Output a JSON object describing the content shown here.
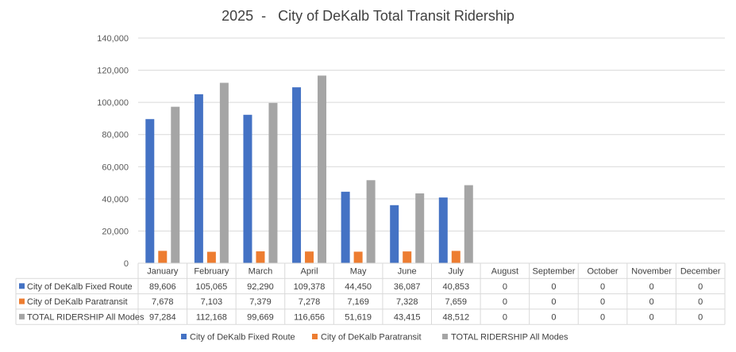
{
  "chart_data": {
    "type": "bar",
    "title": "2025  -   City of DeKalb Total Transit Ridership",
    "categories": [
      "January",
      "February",
      "March",
      "April",
      "May",
      "June",
      "July",
      "August",
      "September",
      "October",
      "November",
      "December"
    ],
    "series": [
      {
        "name": "City of DeKalb  Fixed Route",
        "color": "#4472C4",
        "values": [
          89606,
          105065,
          92290,
          109378,
          44450,
          36087,
          40853,
          0,
          0,
          0,
          0,
          0
        ],
        "labels": [
          "89,606",
          "105,065",
          "92,290",
          "109,378",
          "44,450",
          "36,087",
          "40,853",
          "0",
          "0",
          "0",
          "0",
          "0"
        ]
      },
      {
        "name": "City of DeKalb  Paratransit",
        "color": "#ED7D31",
        "values": [
          7678,
          7103,
          7379,
          7278,
          7169,
          7328,
          7659,
          0,
          0,
          0,
          0,
          0
        ],
        "labels": [
          "7,678",
          "7,103",
          "7,379",
          "7,278",
          "7,169",
          "7,328",
          "7,659",
          "0",
          "0",
          "0",
          "0",
          "0"
        ]
      },
      {
        "name": "TOTAL RIDERSHIP All Modes",
        "color": "#A5A5A5",
        "values": [
          97284,
          112168,
          99669,
          116656,
          51619,
          43415,
          48512,
          0,
          0,
          0,
          0,
          0
        ],
        "labels": [
          "97,284",
          "112,168",
          "99,669",
          "116,656",
          "51,619",
          "43,415",
          "48,512",
          "0",
          "0",
          "0",
          "0",
          "0"
        ]
      }
    ],
    "ylim": [
      0,
      140000
    ],
    "yticks": [
      0,
      20000,
      40000,
      60000,
      80000,
      100000,
      120000,
      140000
    ],
    "ytick_labels": [
      "0",
      "20,000",
      "40,000",
      "60,000",
      "80,000",
      "100,000",
      "120,000",
      "140,000"
    ],
    "grid": true,
    "legend": "bottom",
    "data_table": true
  }
}
